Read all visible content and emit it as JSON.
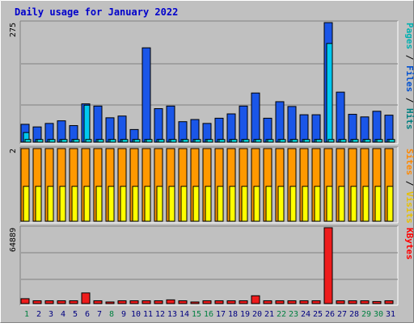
{
  "chart_data": {
    "type": "bar",
    "title": "Daily usage for January 2022",
    "categories": [
      "1",
      "2",
      "3",
      "4",
      "5",
      "6",
      "7",
      "8",
      "9",
      "10",
      "11",
      "12",
      "13",
      "14",
      "15",
      "16",
      "17",
      "18",
      "19",
      "20",
      "21",
      "22",
      "23",
      "24",
      "25",
      "26",
      "27",
      "28",
      "29",
      "30",
      "31"
    ],
    "weekend_days": [
      "1",
      "8",
      "15",
      "16",
      "22",
      "23",
      "29",
      "30"
    ],
    "panels": [
      {
        "id": "top",
        "ytick": "275",
        "ymax": 275,
        "ylabels": [
          "Pages",
          "Files",
          "Hits"
        ],
        "series": [
          {
            "name": "Hits",
            "color": "#1a56e8",
            "values": [
              41,
              35,
              43,
              49,
              38,
              88,
              83,
              56,
              60,
              29,
              217,
              77,
              83,
              47,
              52,
              43,
              55,
              65,
              83,
              113,
              55,
              93,
              82,
              63,
              63,
              275,
              115,
              64,
              58,
              71,
              62
            ]
          },
          {
            "name": "Files",
            "color": "#00c8f0",
            "values": [
              22,
              6,
              6,
              6,
              6,
              85,
              6,
              6,
              6,
              6,
              6,
              6,
              6,
              6,
              6,
              6,
              6,
              6,
              6,
              6,
              6,
              6,
              6,
              6,
              6,
              227,
              6,
              6,
              6,
              6,
              6
            ]
          },
          {
            "name": "Pages",
            "color": "#00e8e8",
            "values": [
              6,
              6,
              6,
              6,
              6,
              6,
              6,
              6,
              6,
              6,
              6,
              6,
              6,
              6,
              6,
              6,
              6,
              6,
              6,
              6,
              6,
              6,
              6,
              6,
              6,
              6,
              6,
              6,
              6,
              6,
              6
            ]
          }
        ]
      },
      {
        "id": "middle",
        "ytick": "2",
        "ymax": 2,
        "ylabels": [
          "Sites",
          "Visits"
        ],
        "series": [
          {
            "name": "Visits",
            "color": "#ff9900",
            "values": [
              2,
              2,
              2,
              2,
              2,
              2,
              2,
              2,
              2,
              2,
              2,
              2,
              2,
              2,
              2,
              2,
              2,
              2,
              2,
              2,
              2,
              2,
              2,
              2,
              2,
              2,
              2,
              2,
              2,
              2,
              2
            ]
          },
          {
            "name": "Sites",
            "color": "#ffff00",
            "values": [
              1,
              1,
              1,
              1,
              1,
              1,
              1,
              1,
              1,
              1,
              1,
              1,
              1,
              1,
              1,
              1,
              1,
              1,
              1,
              1,
              1,
              1,
              1,
              1,
              1,
              1,
              1,
              1,
              1,
              1,
              1
            ]
          }
        ]
      },
      {
        "id": "bottom",
        "ytick": "64889",
        "ymax": 64889,
        "ylabels": [
          "KBytes"
        ],
        "series": [
          {
            "name": "KBytes",
            "color": "#ee1c1c",
            "values": [
              4200,
              2400,
              2400,
              2400,
              2400,
              9100,
              2400,
              1400,
              2400,
              2400,
              2400,
              2400,
              3200,
              2400,
              1400,
              2400,
              2400,
              2400,
              2400,
              6700,
              2400,
              2400,
              2400,
              2400,
              2400,
              64889,
              2400,
              2400,
              2400,
              1800,
              2400
            ]
          }
        ]
      }
    ]
  },
  "colors": {
    "background": "#c0c0c0",
    "title": "#0000cc",
    "day_label": "#000080",
    "weekend_label": "#008040",
    "pages_label": "#00b0b0",
    "files_label": "#0050d0",
    "hits_label": "#008080",
    "sites_label": "#ff8800",
    "visits_label": "#e8c000",
    "kbytes_label": "#ff0000"
  }
}
